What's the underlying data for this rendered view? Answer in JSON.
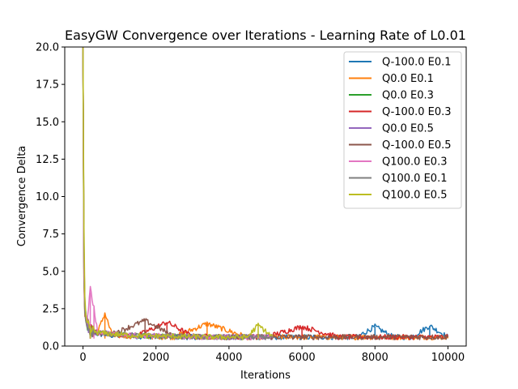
{
  "chart_data": {
    "type": "line",
    "title": "EasyGW Convergence over Iterations - Learning Rate of L0.01",
    "xlabel": "Iterations",
    "ylabel": "Convergence Delta",
    "xlim": [
      -500,
      10500
    ],
    "ylim": [
      0,
      20
    ],
    "xticks": [
      0,
      2000,
      4000,
      6000,
      8000,
      10000
    ],
    "yticks": [
      0.0,
      2.5,
      5.0,
      7.5,
      10.0,
      12.5,
      15.0,
      17.5,
      20.0
    ],
    "xtick_labels": [
      "0",
      "2000",
      "4000",
      "6000",
      "8000",
      "10000"
    ],
    "ytick_labels": [
      "0.0",
      "2.5",
      "5.0",
      "7.5",
      "10.0",
      "12.5",
      "15.0",
      "17.5",
      "20.0"
    ],
    "grid": false,
    "legend_position": "top-right",
    "series": [
      {
        "name": "Q-100.0 E0.1",
        "color": "#1f77b4",
        "x": [
          0,
          20,
          50,
          100,
          200,
          400,
          800,
          1500,
          2500,
          3500,
          4500,
          5500,
          6500,
          7500,
          8000,
          8500,
          9000,
          9500,
          10000
        ],
        "y": [
          20,
          6.0,
          2.5,
          1.4,
          1.0,
          0.8,
          0.7,
          0.65,
          0.6,
          0.6,
          0.6,
          0.6,
          0.6,
          0.6,
          1.3,
          0.6,
          0.6,
          1.35,
          0.6
        ]
      },
      {
        "name": "Q0.0 E0.1",
        "color": "#ff7f0e",
        "x": [
          0,
          20,
          50,
          100,
          200,
          400,
          600,
          800,
          1500,
          2500,
          3400,
          4500,
          5500,
          6500,
          7500,
          8500,
          9500,
          10000
        ],
        "y": [
          20,
          5.0,
          2.2,
          1.3,
          1.0,
          0.9,
          2.2,
          0.7,
          0.65,
          0.6,
          1.5,
          0.6,
          0.6,
          0.6,
          0.6,
          0.6,
          0.6,
          0.6
        ]
      },
      {
        "name": "Q0.0 E0.3",
        "color": "#2ca02c",
        "x": [
          0,
          20,
          50,
          100,
          200,
          400,
          800,
          1500,
          2500,
          3500,
          4500,
          5200
        ],
        "y": [
          20,
          5.5,
          2.4,
          1.4,
          1.0,
          0.9,
          0.8,
          0.7,
          0.65,
          0.6,
          0.6,
          0.6
        ]
      },
      {
        "name": "Q-100.0 E0.3",
        "color": "#d62728",
        "x": [
          0,
          20,
          50,
          100,
          200,
          400,
          800,
          1500,
          2300,
          3000,
          4000,
          5000,
          6000,
          7000,
          8000,
          9000,
          10000
        ],
        "y": [
          20,
          6.5,
          2.6,
          1.5,
          1.1,
          0.9,
          0.8,
          0.7,
          1.6,
          0.65,
          0.6,
          0.6,
          1.3,
          0.6,
          0.6,
          0.6,
          0.6
        ]
      },
      {
        "name": "Q0.0 E0.5",
        "color": "#9467bd",
        "x": [
          0,
          20,
          50,
          100,
          200,
          400,
          800,
          1500,
          2500,
          3500,
          4500,
          5200
        ],
        "y": [
          20,
          6.2,
          2.5,
          1.5,
          1.0,
          0.9,
          0.8,
          0.7,
          0.65,
          0.6,
          0.6,
          0.6
        ]
      },
      {
        "name": "Q-100.0 E0.5",
        "color": "#8c564b",
        "x": [
          0,
          20,
          50,
          100,
          200,
          400,
          800,
          1700,
          2500,
          3500,
          4500,
          5500,
          6500,
          7500,
          8500,
          9500,
          10000
        ],
        "y": [
          20,
          7.7,
          2.8,
          1.6,
          1.1,
          0.9,
          0.8,
          1.7,
          0.65,
          0.6,
          0.6,
          0.6,
          0.6,
          0.6,
          0.6,
          0.6,
          0.6
        ]
      },
      {
        "name": "Q100.0 E0.3",
        "color": "#e377c2",
        "x": [
          0,
          20,
          50,
          100,
          200,
          300,
          400,
          800,
          1500,
          2500,
          3500,
          4500,
          5200
        ],
        "y": [
          20,
          5.8,
          2.6,
          1.5,
          3.6,
          2.6,
          0.9,
          0.8,
          0.7,
          0.65,
          0.6,
          0.6,
          0.6
        ]
      },
      {
        "name": "Q100.0 E0.1",
        "color": "#7f7f7f",
        "x": [
          0,
          20,
          50,
          100,
          200,
          400,
          800,
          1500,
          2500,
          3500,
          4500,
          5200
        ],
        "y": [
          20,
          7.5,
          2.4,
          1.4,
          1.0,
          0.9,
          0.8,
          0.7,
          0.65,
          0.6,
          0.6,
          0.6
        ]
      },
      {
        "name": "Q100.0 E0.5",
        "color": "#bcbd22",
        "x": [
          0,
          10,
          30,
          60,
          100,
          200,
          400,
          800,
          1500,
          2500,
          3500,
          4500,
          4800,
          5200
        ],
        "y": [
          20,
          18.0,
          4.5,
          2.2,
          1.5,
          1.1,
          0.9,
          0.8,
          0.7,
          0.65,
          0.6,
          0.6,
          1.4,
          0.6
        ]
      }
    ]
  }
}
